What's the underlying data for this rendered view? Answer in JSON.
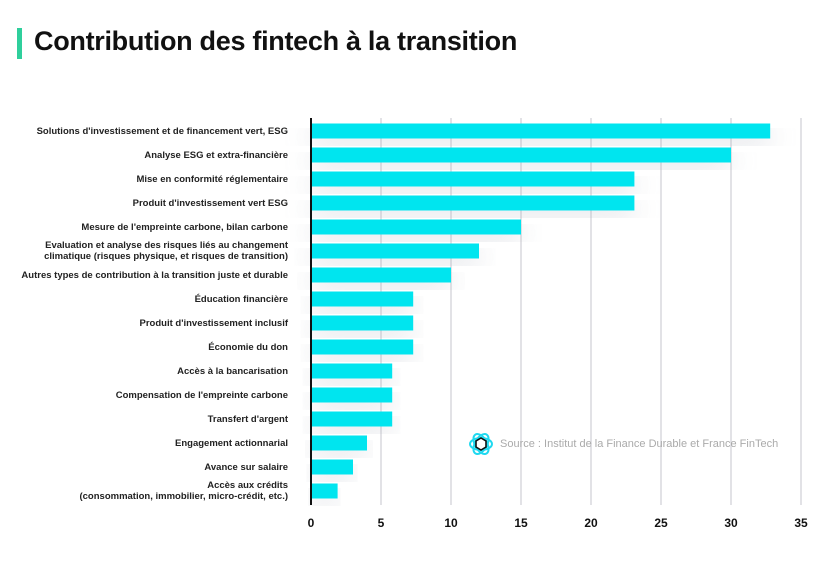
{
  "title": "Contribution des fintech à la transition",
  "source": "Source : Institut de la Finance Durable et France FinTech",
  "colors": {
    "bar": "#00e5ef",
    "accent": "#2fcf9c",
    "grid": "#d9d9de"
  },
  "chart_data": {
    "type": "bar",
    "orientation": "horizontal",
    "title": "Contribution des fintech à la transition",
    "categories": [
      "Solutions d'investissement et de financement vert, ESG",
      "Analyse ESG et extra-financière",
      "Mise en conformité réglementaire",
      "Produit d'investissement vert ESG",
      "Mesure de l'empreinte carbone, bilan carbone",
      "Evaluation et analyse des risques liés au changement\nclimatique (risques physique, et risques de transition)",
      "Autres types de contribution à la transition juste et durable",
      "Éducation financière",
      "Produit d'investissement inclusif",
      "Économie du don",
      "Accès à la bancarisation",
      "Compensation de l'empreinte carbone",
      "Transfert d'argent",
      "Engagement actionnarial",
      "Avance sur salaire",
      "Accès aux crédits\n(consommation, immobilier, micro-crédit, etc.)"
    ],
    "values": [
      32.8,
      30,
      23.1,
      23.1,
      15,
      12,
      10,
      7.3,
      7.3,
      7.3,
      5.8,
      5.8,
      5.8,
      4,
      3,
      1.9
    ],
    "xlim": [
      0,
      35
    ],
    "xticks": [
      "0",
      "5",
      "10",
      "15",
      "20",
      "25",
      "30",
      "35"
    ],
    "grid": true,
    "xlabel": "",
    "ylabel": ""
  }
}
